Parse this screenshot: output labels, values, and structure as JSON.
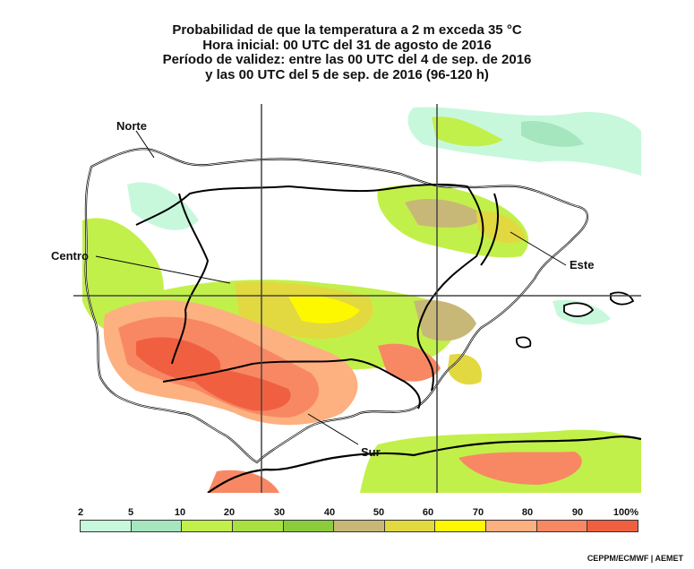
{
  "title": {
    "line1": "Probabilidad de que la temperatura a 2 m exceda 35 °C",
    "line2": "Hora inicial: 00 UTC del 31 de agosto de 2016",
    "line3": "Período de validez: entre las 00 UTC del 4 de sep. de 2016",
    "line4": "y las 00 UTC del 5 de sep. de 2016 (96-120 h)"
  },
  "regions": {
    "norte": "Norte",
    "centro": "Centro",
    "este": "Este",
    "sur": "Sur"
  },
  "legend": {
    "ticks": [
      "2",
      "5",
      "10",
      "20",
      "30",
      "40",
      "50",
      "60",
      "70",
      "80",
      "90",
      "100%"
    ],
    "colors": [
      "#c8f8dc",
      "#a6e6bf",
      "#c2f04a",
      "#a8e040",
      "#8ccc3c",
      "#c8b878",
      "#e2d840",
      "#fdf800",
      "#fdb080",
      "#f88864",
      "#f06040"
    ]
  },
  "credit": "CEPPM/ECMWF | AEMET"
}
